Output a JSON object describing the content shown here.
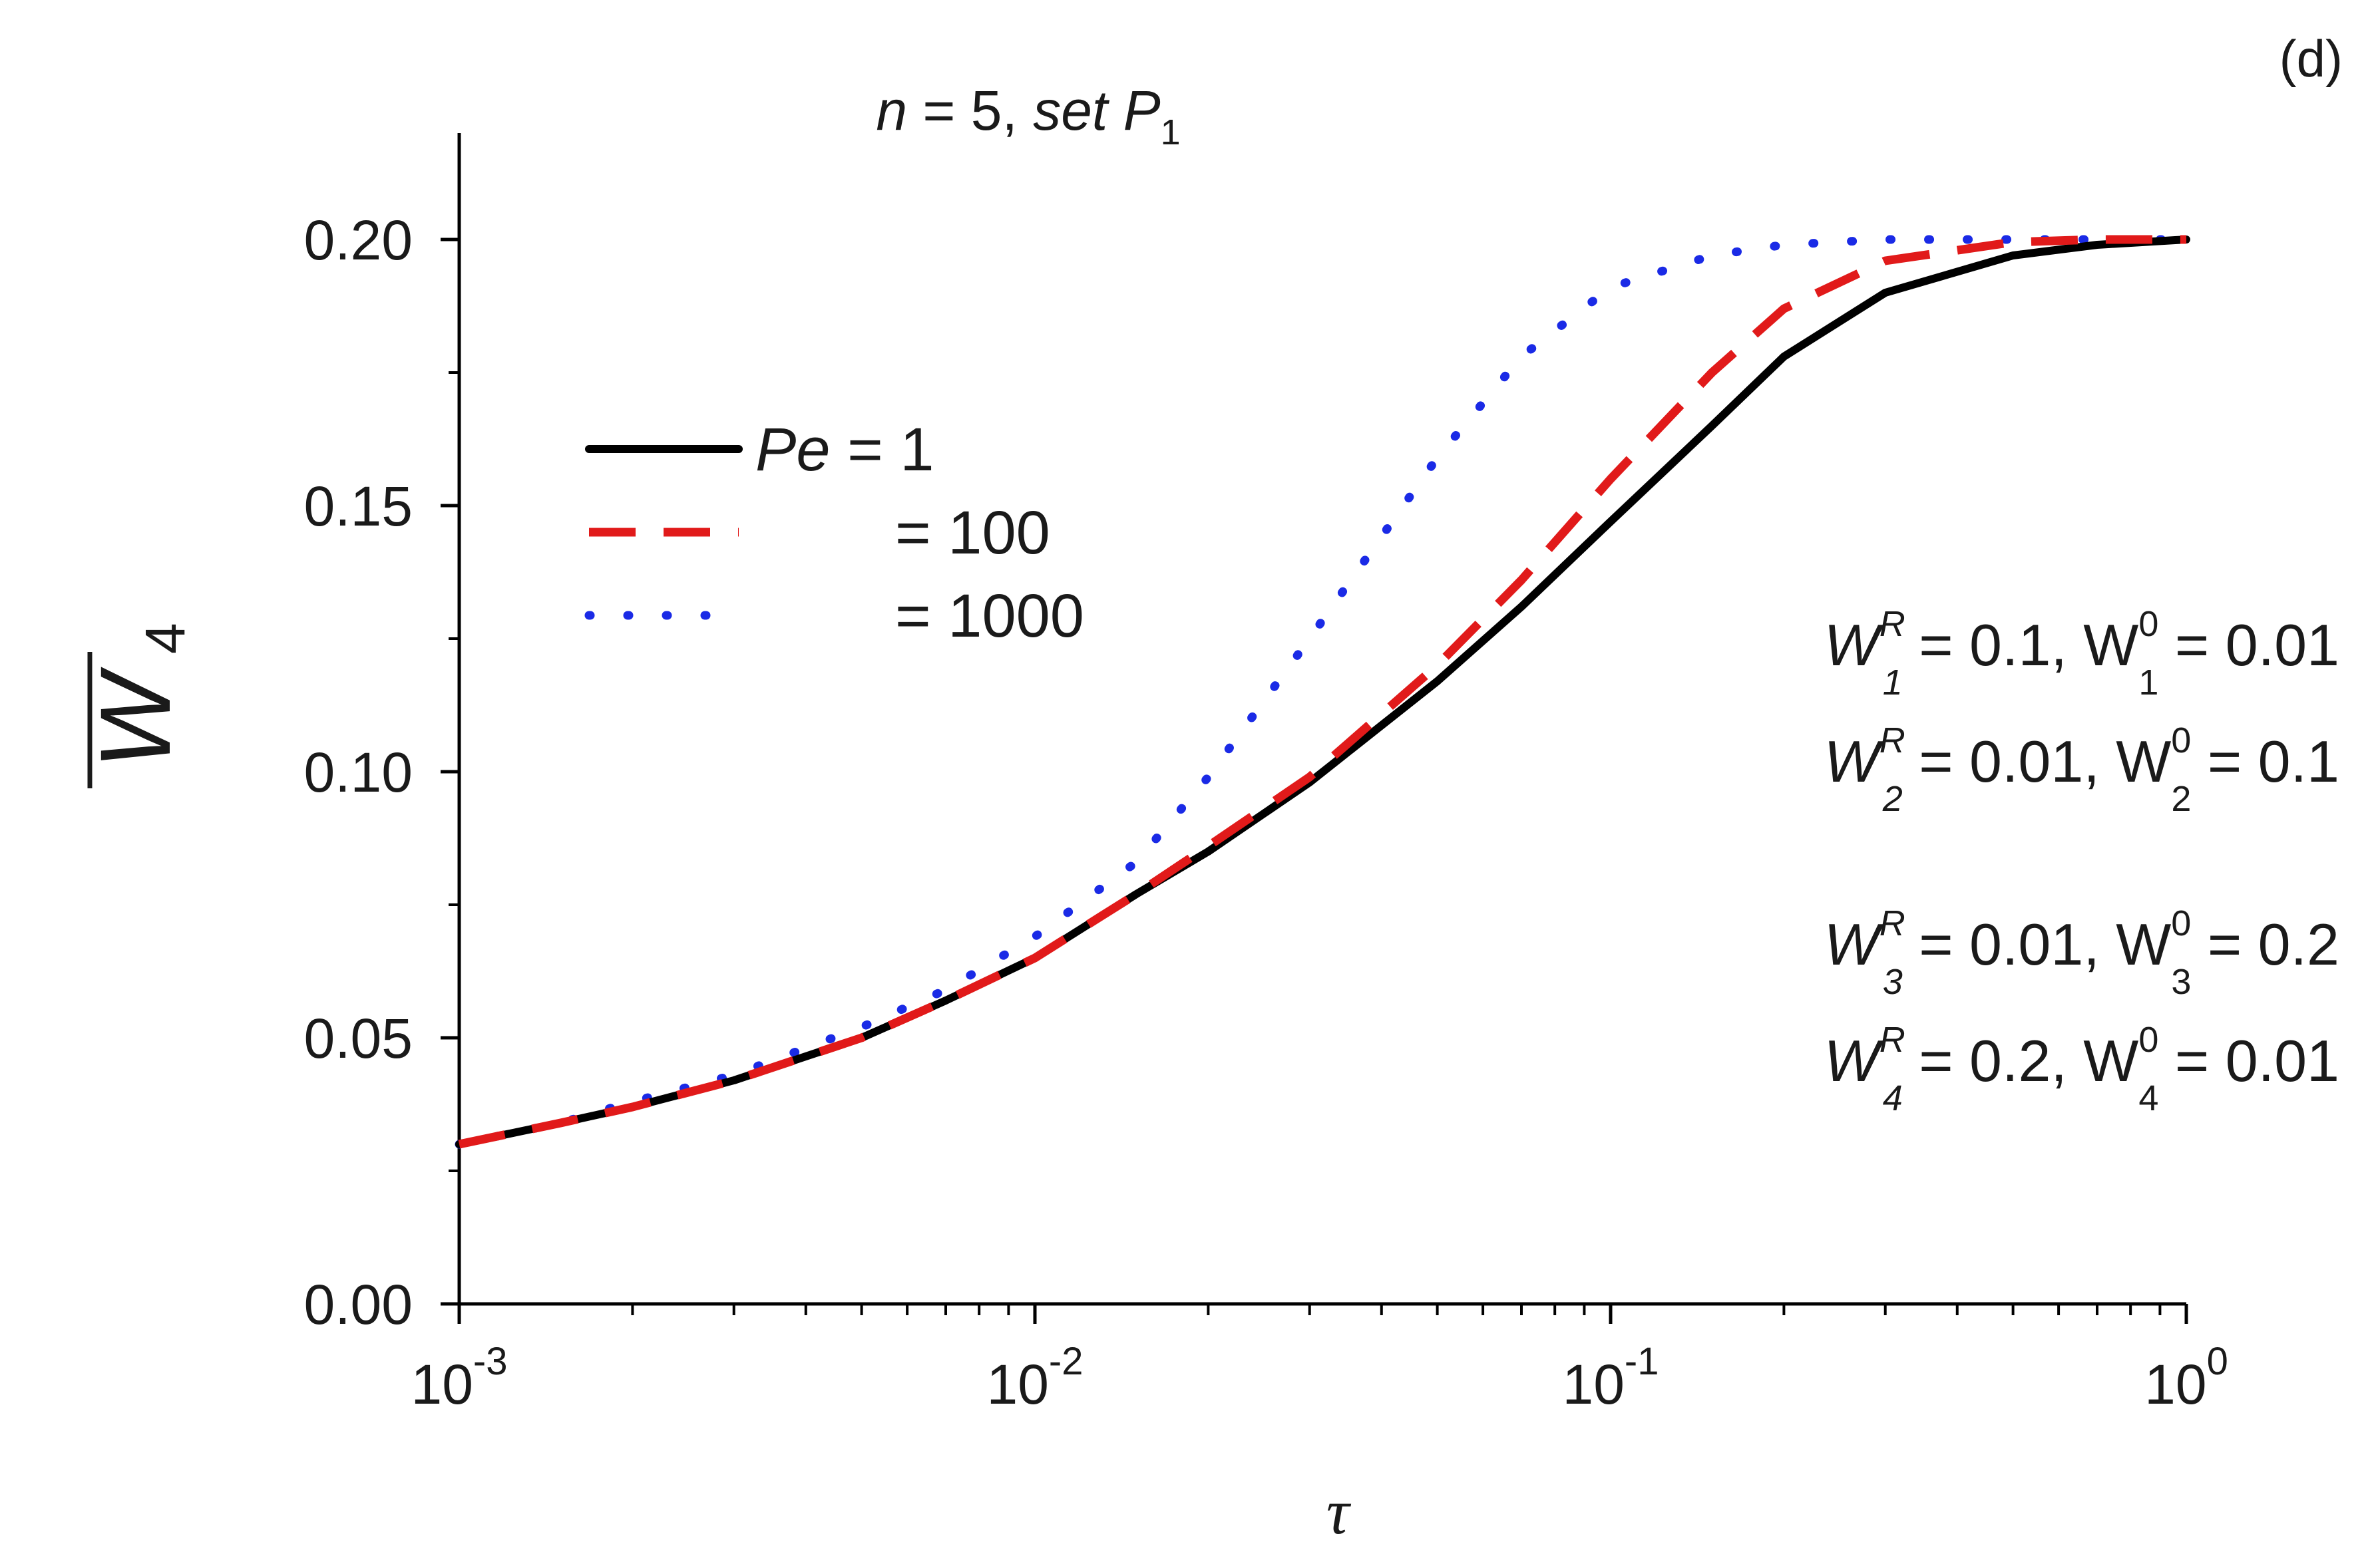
{
  "chart_data": {
    "type": "line",
    "panel_label": "(d)",
    "title": {
      "n_part": "n",
      "rest": " = 5, ",
      "set": "set P",
      "sub": "1"
    },
    "xlabel": "τ",
    "ylabel": {
      "main": "W",
      "sub": "4"
    },
    "xscale": "log",
    "xlim": [
      0.001,
      1
    ],
    "ylim": [
      0,
      0.22
    ],
    "x_ticks": [
      {
        "base": "10",
        "exp": "-3",
        "value": 0.001
      },
      {
        "base": "10",
        "exp": "-2",
        "value": 0.01
      },
      {
        "base": "10",
        "exp": "-1",
        "value": 0.1
      },
      {
        "base": "10",
        "exp": "0",
        "value": 1
      }
    ],
    "y_ticks": [
      {
        "label": "0.00",
        "value": 0.0
      },
      {
        "label": "0.05",
        "value": 0.05
      },
      {
        "label": "0.10",
        "value": 0.1
      },
      {
        "label": "0.15",
        "value": 0.15
      },
      {
        "label": "0.20",
        "value": 0.2
      }
    ],
    "legend": {
      "position": "upper-left",
      "entries": [
        {
          "prefix": "Pe",
          "text": " = 1"
        },
        {
          "prefix": "",
          "text": "= 100"
        },
        {
          "prefix": "",
          "text": "= 1000"
        }
      ]
    },
    "series": [
      {
        "name": "Pe = 1",
        "color": "#000000",
        "style": "solid",
        "points": [
          [
            0.001,
            0.03
          ],
          [
            0.0015,
            0.034
          ],
          [
            0.002,
            0.037
          ],
          [
            0.003,
            0.042
          ],
          [
            0.005,
            0.05
          ],
          [
            0.007,
            0.057
          ],
          [
            0.01,
            0.065
          ],
          [
            0.015,
            0.077
          ],
          [
            0.02,
            0.085
          ],
          [
            0.03,
            0.098
          ],
          [
            0.05,
            0.117
          ],
          [
            0.07,
            0.131
          ],
          [
            0.1,
            0.147
          ],
          [
            0.15,
            0.165
          ],
          [
            0.2,
            0.178
          ],
          [
            0.3,
            0.19
          ],
          [
            0.5,
            0.197
          ],
          [
            0.7,
            0.199
          ],
          [
            1.0,
            0.2
          ]
        ]
      },
      {
        "name": "Pe = 100",
        "color": "#e11a1a",
        "style": "dashed",
        "points": [
          [
            0.001,
            0.03
          ],
          [
            0.0015,
            0.034
          ],
          [
            0.002,
            0.037
          ],
          [
            0.003,
            0.042
          ],
          [
            0.005,
            0.05
          ],
          [
            0.007,
            0.057
          ],
          [
            0.01,
            0.065
          ],
          [
            0.015,
            0.077
          ],
          [
            0.02,
            0.086
          ],
          [
            0.03,
            0.099
          ],
          [
            0.05,
            0.12
          ],
          [
            0.07,
            0.136
          ],
          [
            0.1,
            0.155
          ],
          [
            0.15,
            0.175
          ],
          [
            0.2,
            0.187
          ],
          [
            0.3,
            0.196
          ],
          [
            0.5,
            0.1995
          ],
          [
            0.7,
            0.2
          ],
          [
            1.0,
            0.2
          ]
        ]
      },
      {
        "name": "Pe = 1000",
        "color": "#1a2ae6",
        "style": "dotted",
        "points": [
          [
            0.001,
            0.03
          ],
          [
            0.0015,
            0.034
          ],
          [
            0.002,
            0.038
          ],
          [
            0.003,
            0.043
          ],
          [
            0.005,
            0.052
          ],
          [
            0.007,
            0.059
          ],
          [
            0.01,
            0.069
          ],
          [
            0.015,
            0.083
          ],
          [
            0.02,
            0.099
          ],
          [
            0.03,
            0.125
          ],
          [
            0.05,
            0.159
          ],
          [
            0.07,
            0.178
          ],
          [
            0.1,
            0.191
          ],
          [
            0.15,
            0.197
          ],
          [
            0.2,
            0.199
          ],
          [
            0.3,
            0.2
          ],
          [
            0.5,
            0.2
          ],
          [
            1.0,
            0.2
          ]
        ]
      }
    ],
    "annotations": [
      {
        "sym": "W",
        "sup": "R",
        "sub": "1",
        "mid": " = 0.1, W",
        "sup2": "0",
        "sub2": "1",
        "tail": " = 0.01"
      },
      {
        "sym": "W",
        "sup": "R",
        "sub": "2",
        "mid": " = 0.01, W",
        "sup2": "0",
        "sub2": "2",
        "tail": " = 0.1"
      },
      {
        "sym": "W",
        "sup": "R",
        "sub": "3",
        "mid": " = 0.01, W",
        "sup2": "0",
        "sub2": "3",
        "tail": " = 0.2"
      },
      {
        "sym": "W",
        "sup": "R",
        "sub": "4",
        "mid": " = 0.2, W",
        "sup2": "0",
        "sub2": "4",
        "tail": " = 0.01"
      }
    ]
  }
}
